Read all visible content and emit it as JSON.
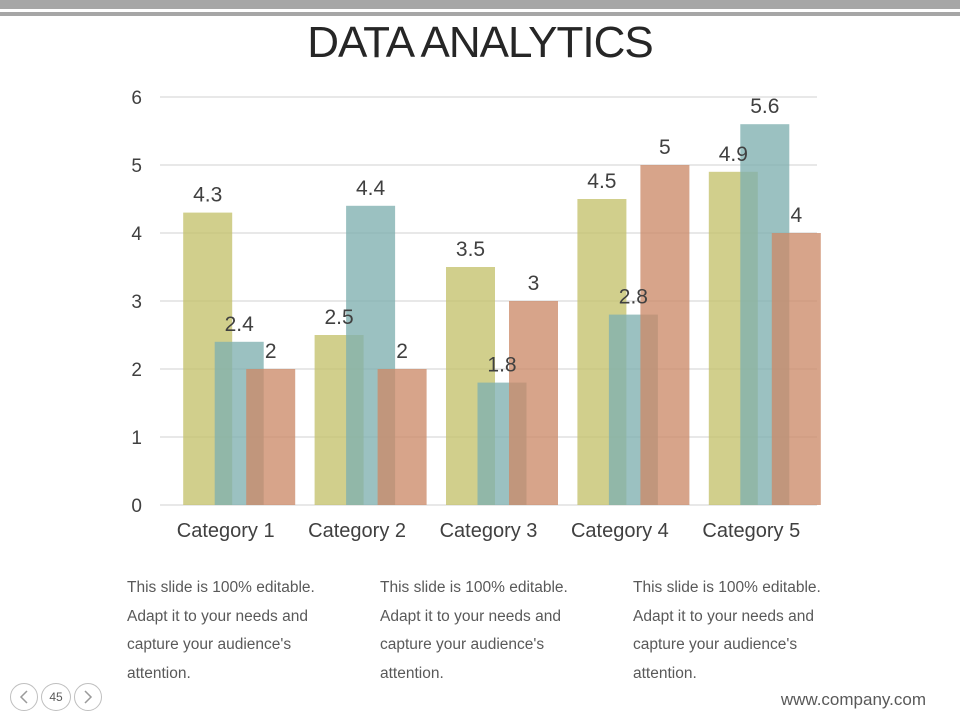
{
  "slide": {
    "title": "DATA ANALYTICS",
    "page_number": "45",
    "footer": "www.company.com",
    "notes": [
      {
        "lines": [
          "This slide is 100% editable.",
          "Adapt it to your needs and",
          "capture your audience's",
          "attention."
        ]
      },
      {
        "lines": [
          "This slide is 100% editable.",
          "Adapt it to your needs and",
          "capture your audience's",
          "attention."
        ]
      },
      {
        "lines": [
          "This slide is 100% editable.",
          "Adapt it to your needs and",
          "capture your audience's",
          "attention."
        ]
      }
    ],
    "nav_icons": {
      "prev": "chevron-left-icon",
      "next": "chevron-right-icon"
    }
  },
  "chart_data": {
    "type": "bar",
    "title": "",
    "xlabel": "",
    "ylabel": "",
    "ylim": [
      0,
      6
    ],
    "yticks": [
      0,
      1,
      2,
      3,
      4,
      5,
      6
    ],
    "grid": true,
    "legend": "none",
    "categories": [
      "Category 1",
      "Category 2",
      "Category 3",
      "Category 4",
      "Category 5"
    ],
    "series": [
      {
        "values": [
          4.3,
          2.5,
          3.5,
          4.5,
          4.9
        ],
        "color": "#c4c26c"
      },
      {
        "values": [
          2.4,
          4.4,
          1.8,
          2.8,
          5.6
        ],
        "color": "#7fb0b0"
      },
      {
        "values": [
          2,
          2,
          3,
          5,
          4
        ],
        "color": "#cc8a69"
      }
    ]
  }
}
